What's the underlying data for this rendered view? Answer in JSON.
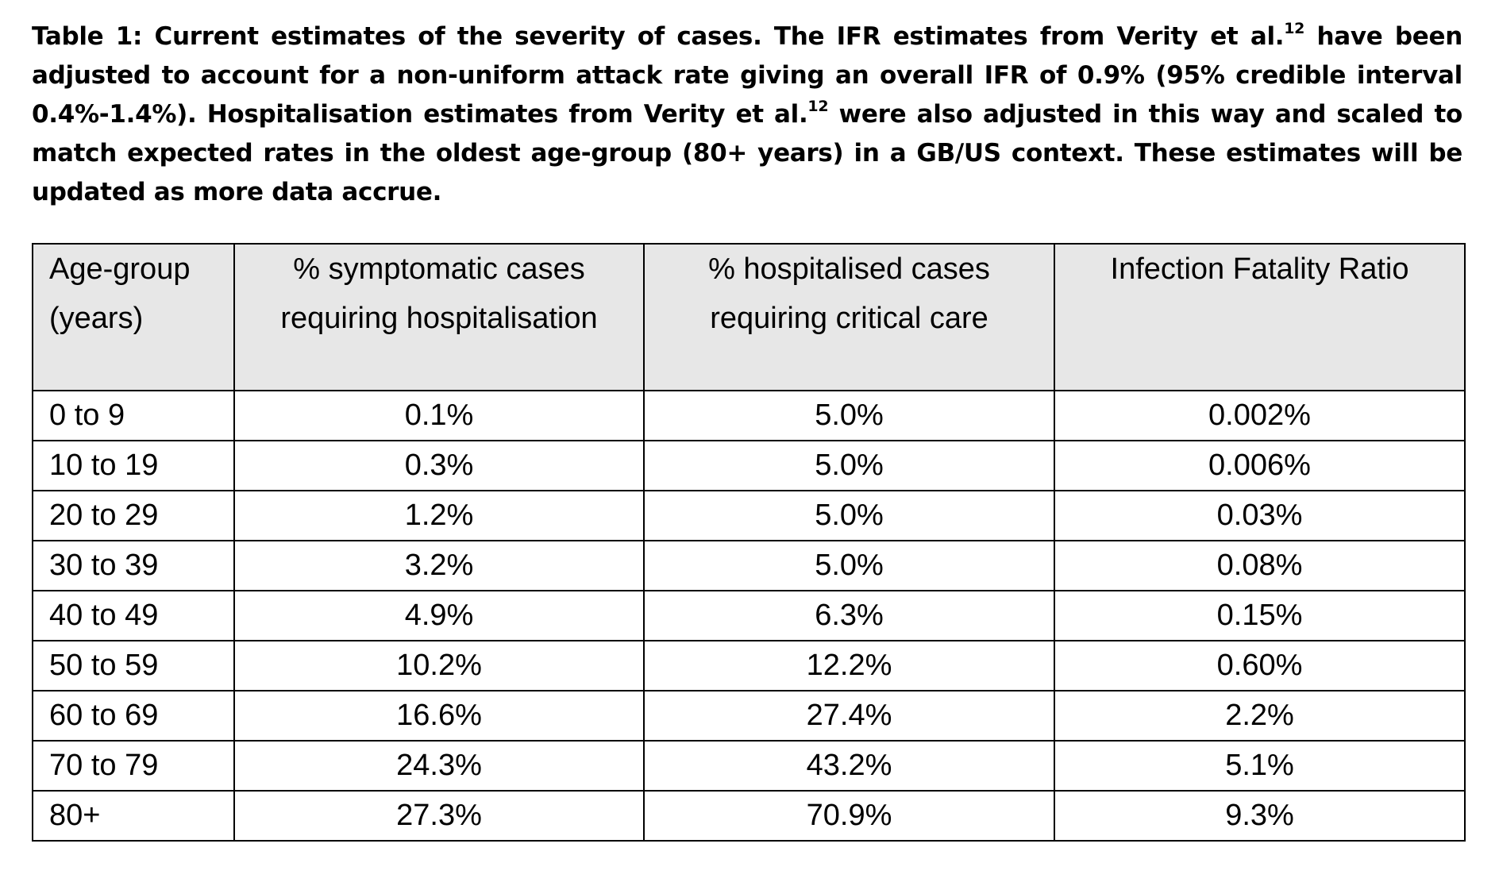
{
  "caption": {
    "part1": "Table 1: Current estimates of the severity of cases. The IFR estimates from Verity et al.",
    "ref1": "12",
    "part2": " have been adjusted to account for a non-uniform attack rate giving an overall IFR of 0.9% (95% credible interval 0.4%-1.4%). Hospitalisation estimates from Verity et al.",
    "ref2": "12",
    "part3": " were also adjusted in this way and scaled to match expected rates in the oldest age-group (80+ years) in a GB/US context. These estimates will be updated as more data accrue."
  },
  "table": {
    "headers": [
      {
        "line1": "Age-group",
        "line2": "(years)"
      },
      {
        "line1": "% symptomatic cases",
        "line2": "requiring hospitalisation"
      },
      {
        "line1": "% hospitalised cases",
        "line2": "requiring critical care"
      },
      {
        "line1": "Infection Fatality Ratio",
        "line2": ""
      }
    ],
    "rows": [
      {
        "age": "0 to 9",
        "hosp": "0.1%",
        "critical": "5.0%",
        "ifr": "0.002%"
      },
      {
        "age": "10 to 19",
        "hosp": "0.3%",
        "critical": "5.0%",
        "ifr": "0.006%"
      },
      {
        "age": "20 to 29",
        "hosp": "1.2%",
        "critical": "5.0%",
        "ifr": "0.03%"
      },
      {
        "age": "30 to 39",
        "hosp": "3.2%",
        "critical": "5.0%",
        "ifr": "0.08%"
      },
      {
        "age": "40 to 49",
        "hosp": "4.9%",
        "critical": "6.3%",
        "ifr": "0.15%"
      },
      {
        "age": "50 to 59",
        "hosp": "10.2%",
        "critical": "12.2%",
        "ifr": "0.60%"
      },
      {
        "age": "60 to 69",
        "hosp": "16.6%",
        "critical": "27.4%",
        "ifr": "2.2%"
      },
      {
        "age": "70 to 79",
        "hosp": "24.3%",
        "critical": "43.2%",
        "ifr": "5.1%"
      },
      {
        "age": "80+",
        "hosp": "27.3%",
        "critical": "70.9%",
        "ifr": "9.3%"
      }
    ]
  }
}
